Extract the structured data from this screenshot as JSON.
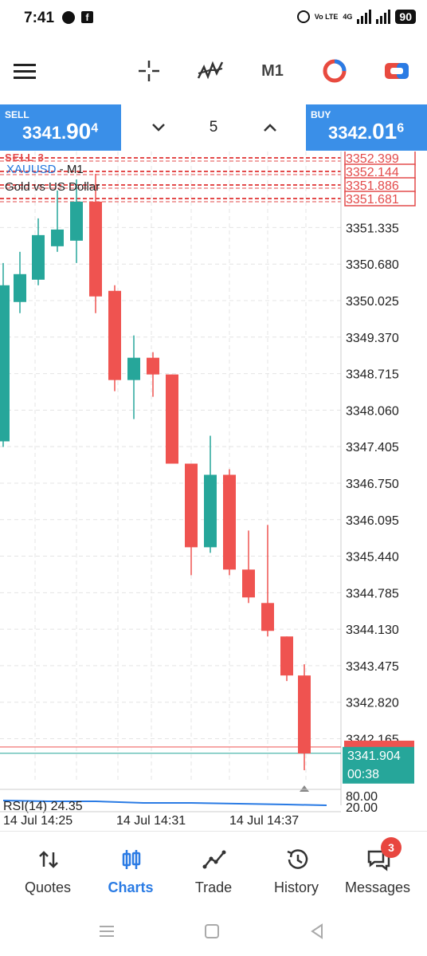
{
  "status_bar": {
    "time": "7:41",
    "volte": "Vo LTE",
    "network": "4G",
    "battery": "90"
  },
  "toolbar": {
    "menu_icon": "hamburger-menu-icon",
    "crosshair_icon": "crosshair-icon",
    "indicators_icon": "indicators-icon",
    "timeframe": "M1",
    "objects_icon": "objects-icon",
    "trade_icon": "one-click-trade-icon"
  },
  "quote_bar": {
    "sell_label": "SELL",
    "sell_price_main": "3341.",
    "sell_price_big": "90",
    "sell_price_sup": "4",
    "buy_label": "BUY",
    "buy_price_main": "3342.",
    "buy_price_big": "01",
    "buy_price_sup": "6",
    "volume": "5"
  },
  "chart": {
    "symbol": "XAUUSD",
    "separator": " - ",
    "timeframe": "M1",
    "description": "Gold vs US Dollar",
    "sell_marker": "SELL 3",
    "price_labels": [
      "3352.399",
      "3352.144",
      "3351.886",
      "3351.681",
      "3351.335",
      "3350.680",
      "3350.025",
      "3349.370",
      "3348.715",
      "3348.060",
      "3347.405",
      "3346.750",
      "3346.095",
      "3345.440",
      "3344.785",
      "3344.130",
      "3343.475",
      "3342.820",
      "3342.165"
    ],
    "current_price": "3341.904",
    "countdown": "00:38",
    "rsi_label": "RSI(14) 24.35",
    "rsi_levels": [
      "80.00",
      "20.00"
    ],
    "time_labels": [
      "14 Jul 14:25",
      "14 Jul 14:31",
      "14 Jul 14:37"
    ],
    "colors": {
      "bull": "#26a69a",
      "bear": "#ef5350",
      "order_line": "#e34b4b",
      "bid_line": "#26a69a",
      "rsi_line": "#2a7be4"
    }
  },
  "chart_data": {
    "type": "candlestick",
    "title": "XAUUSD - M1",
    "ylim": [
      3341.4,
      3352.7
    ],
    "candles": [
      {
        "o": 3347.5,
        "h": 3350.7,
        "l": 3347.4,
        "c": 3350.3,
        "dir": "bull"
      },
      {
        "o": 3350.0,
        "h": 3350.9,
        "l": 3349.8,
        "c": 3350.5,
        "dir": "bull"
      },
      {
        "o": 3350.4,
        "h": 3351.5,
        "l": 3350.3,
        "c": 3351.2,
        "dir": "bull"
      },
      {
        "o": 3351.0,
        "h": 3352.0,
        "l": 3350.9,
        "c": 3351.3,
        "dir": "bull"
      },
      {
        "o": 3351.1,
        "h": 3352.2,
        "l": 3350.7,
        "c": 3351.8,
        "dir": "bull"
      },
      {
        "o": 3351.8,
        "h": 3352.3,
        "l": 3349.8,
        "c": 3350.1,
        "dir": "bear"
      },
      {
        "o": 3350.2,
        "h": 3350.3,
        "l": 3348.4,
        "c": 3348.6,
        "dir": "bear"
      },
      {
        "o": 3348.6,
        "h": 3349.4,
        "l": 3347.9,
        "c": 3349.0,
        "dir": "bull"
      },
      {
        "o": 3349.0,
        "h": 3349.1,
        "l": 3348.3,
        "c": 3348.7,
        "dir": "bear"
      },
      {
        "o": 3348.7,
        "h": 3348.7,
        "l": 3347.1,
        "c": 3347.1,
        "dir": "bear"
      },
      {
        "o": 3347.1,
        "h": 3347.1,
        "l": 3345.1,
        "c": 3345.6,
        "dir": "bear"
      },
      {
        "o": 3345.6,
        "h": 3347.6,
        "l": 3345.5,
        "c": 3346.9,
        "dir": "bull"
      },
      {
        "o": 3346.9,
        "h": 3347.0,
        "l": 3345.1,
        "c": 3345.2,
        "dir": "bear"
      },
      {
        "o": 3345.2,
        "h": 3345.9,
        "l": 3344.6,
        "c": 3344.7,
        "dir": "bear"
      },
      {
        "o": 3344.6,
        "h": 3346.0,
        "l": 3344.0,
        "c": 3344.1,
        "dir": "bear"
      },
      {
        "o": 3344.0,
        "h": 3344.0,
        "l": 3343.2,
        "c": 3343.3,
        "dir": "bear"
      },
      {
        "o": 3343.3,
        "h": 3343.5,
        "l": 3341.6,
        "c": 3341.9,
        "dir": "bear"
      }
    ]
  },
  "bottom_nav": {
    "items": [
      {
        "label": "Quotes",
        "icon": "quotes-arrows-icon"
      },
      {
        "label": "Charts",
        "icon": "charts-candles-icon"
      },
      {
        "label": "Trade",
        "icon": "trade-line-icon"
      },
      {
        "label": "History",
        "icon": "history-clock-icon"
      },
      {
        "label": "Messages",
        "icon": "messages-chat-icon"
      }
    ],
    "messages_badge": "3"
  }
}
